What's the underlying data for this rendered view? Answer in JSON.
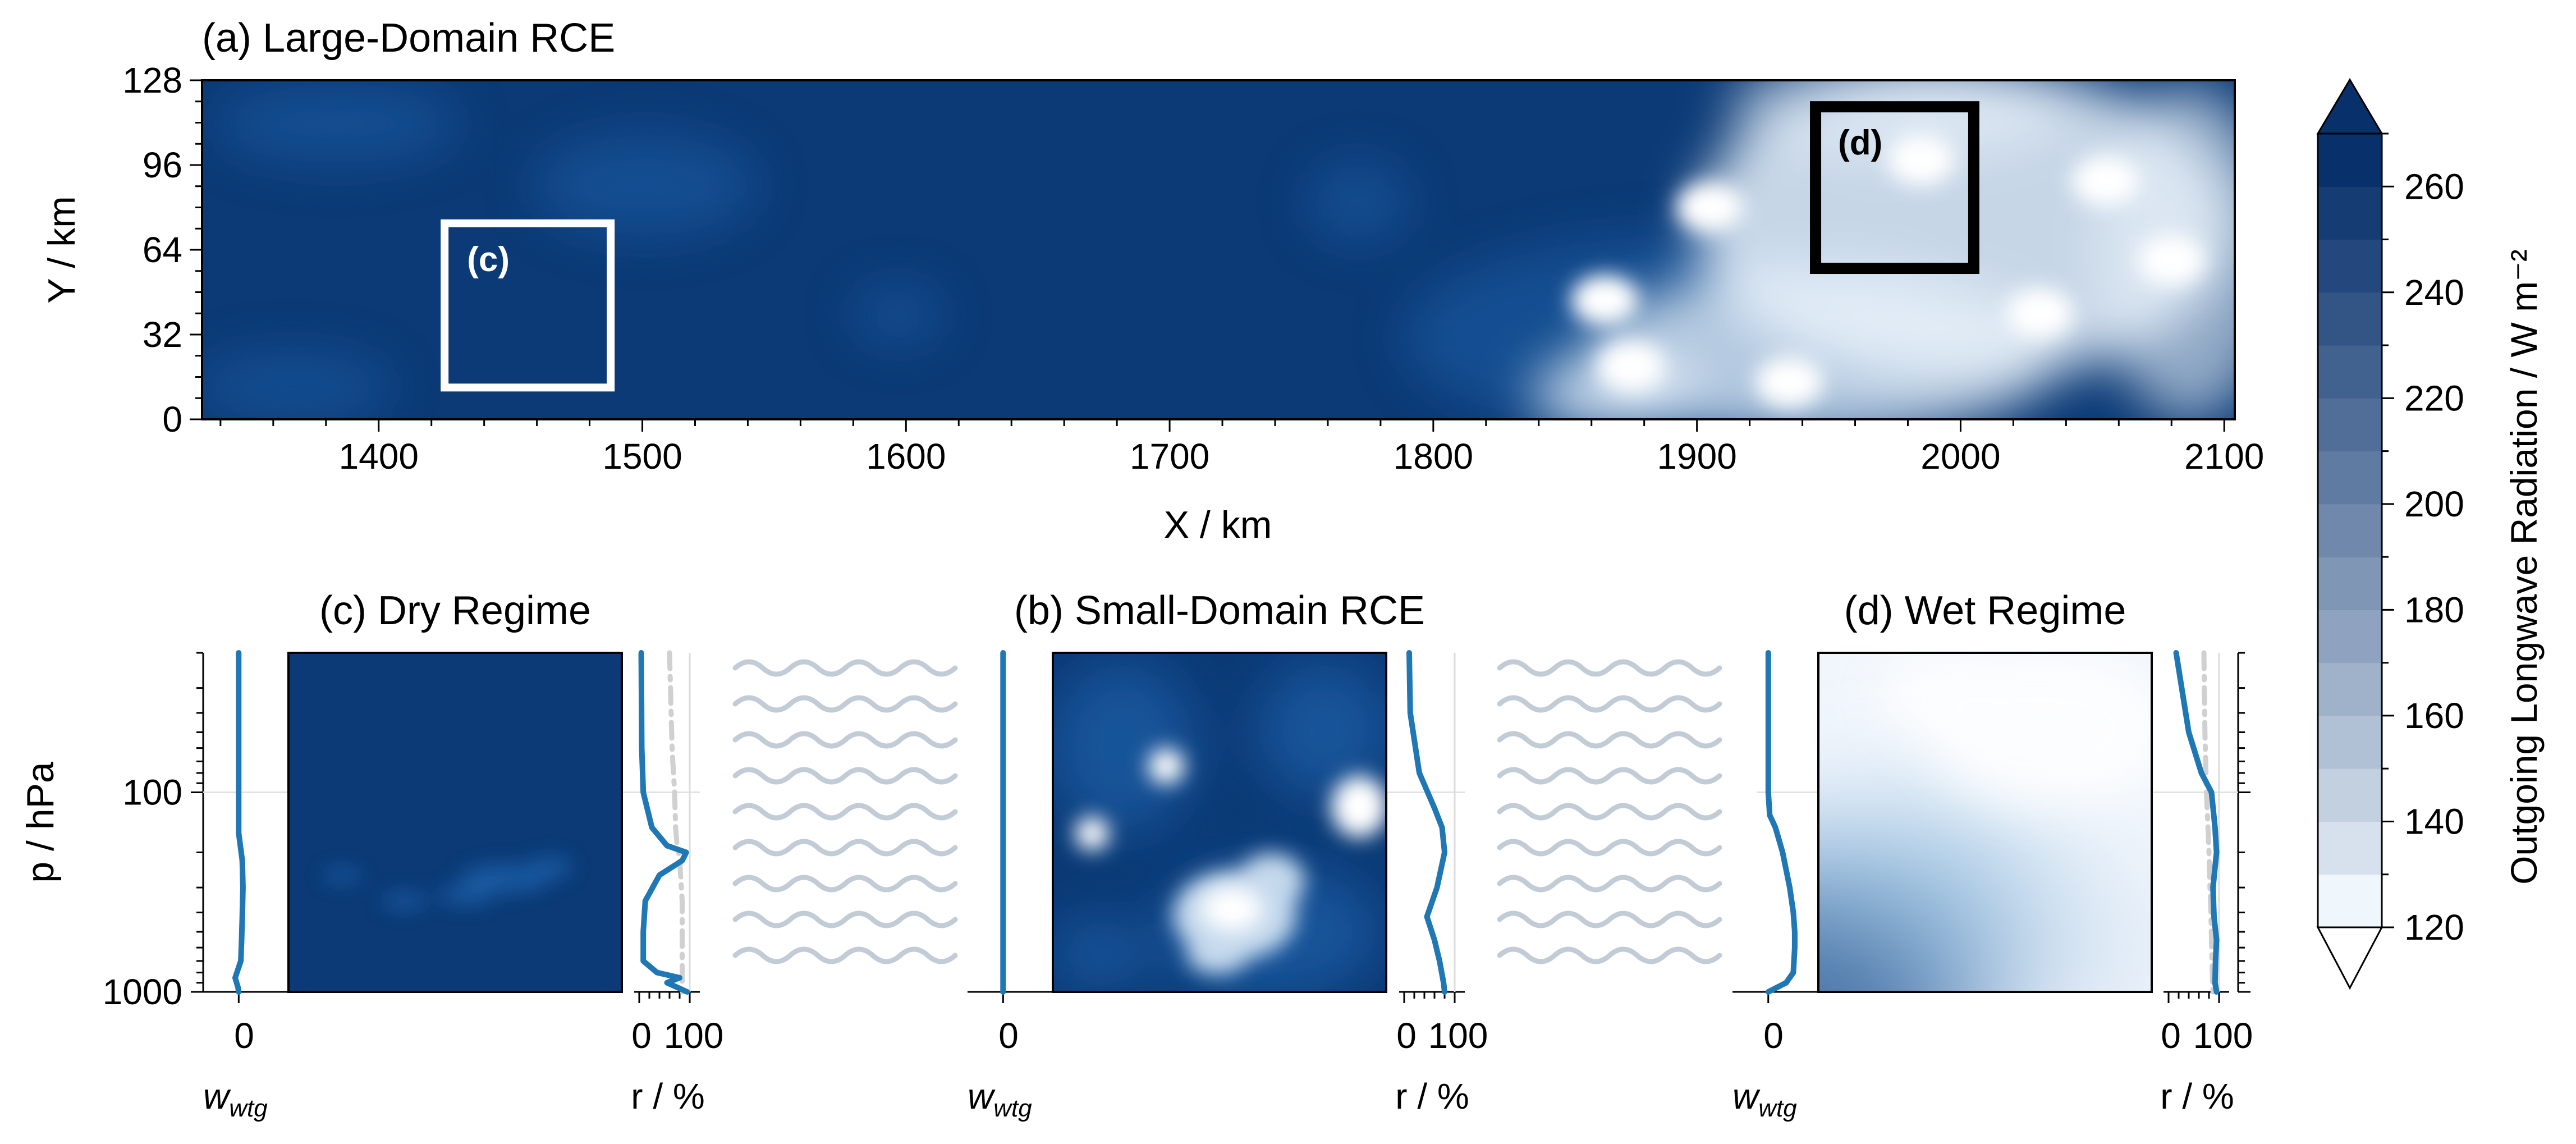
{
  "colors": {
    "field_dark": "#0b3a76",
    "field_mid": "#1c5ea8",
    "profile_line": "#1f77b4",
    "reference_dash": "#d0d0d0",
    "waves": "#c2ccd6",
    "box_dry": "#ffffff",
    "box_wet": "#000000"
  },
  "chart_data": [
    {
      "type": "heatmap",
      "panel": "a",
      "title": "(a) Large-Domain RCE",
      "xlabel": "X / km",
      "ylabel": "Y / km",
      "xlim": [
        1333,
        2104
      ],
      "ylim": [
        0,
        128
      ],
      "xticks": [
        1400,
        1500,
        1600,
        1700,
        1800,
        1900,
        2000,
        2100
      ],
      "yticks": [
        0,
        32,
        64,
        96,
        128
      ],
      "field": "Outgoing Longwave Radiation",
      "regions": [
        {
          "label": "(c)",
          "x": [
            1425,
            1488
          ],
          "y": [
            12,
            74
          ],
          "outline": "white"
        },
        {
          "label": "(d)",
          "x": [
            1945,
            2005
          ],
          "y": [
            57,
            118
          ],
          "outline": "black"
        }
      ],
      "bright_cloud_clusters_km": [
        {
          "x": 1905,
          "y": 80
        },
        {
          "x": 1865,
          "y": 45
        },
        {
          "x": 1875,
          "y": 20
        },
        {
          "x": 1935,
          "y": 14
        },
        {
          "x": 1985,
          "y": 98
        },
        {
          "x": 2055,
          "y": 90
        },
        {
          "x": 2030,
          "y": 40
        },
        {
          "x": 2080,
          "y": 60
        }
      ]
    },
    {
      "type": "line",
      "panel": "c",
      "title": "(c) Dry Regime",
      "ylabel": "p / hPa",
      "y_scale": "log",
      "ylim": [
        1000,
        20
      ],
      "yticks": [
        100,
        1000
      ],
      "w_wtg": {
        "xlabel": "w_wtg",
        "xticks": [
          0
        ],
        "xlim": [
          -0.5,
          0.7
        ],
        "p": [
          20,
          100,
          160,
          220,
          300,
          420,
          560,
          700,
          850,
          950,
          1000
        ],
        "values": [
          0.0,
          0.0,
          0.0,
          0.05,
          0.06,
          0.05,
          0.04,
          0.03,
          -0.05,
          -0.01,
          0.0
        ]
      },
      "r_percent": {
        "xlabel": "r / %",
        "xticks": [
          0,
          100
        ],
        "xlim": [
          -10,
          120
        ],
        "p": [
          20,
          60,
          100,
          150,
          185,
          200,
          220,
          260,
          350,
          500,
          700,
          800,
          850,
          900,
          1000
        ],
        "values": [
          4,
          5,
          8,
          25,
          55,
          93,
          85,
          40,
          12,
          8,
          8,
          35,
          80,
          55,
          95
        ],
        "reference_values": [
          60,
          65,
          70,
          72,
          75,
          78,
          80,
          82,
          85,
          85,
          85,
          85,
          85,
          85,
          85
        ]
      }
    },
    {
      "type": "line",
      "panel": "b",
      "title": "(b) Small-Domain RCE",
      "w_wtg": {
        "xlabel": "w_wtg",
        "xticks": [
          0
        ],
        "p": [
          20,
          1000
        ],
        "values": [
          0,
          0
        ]
      },
      "r_percent": {
        "xlabel": "r / %",
        "xticks": [
          0,
          100
        ],
        "p": [
          20,
          40,
          80,
          120,
          150,
          200,
          300,
          420,
          550,
          700,
          900,
          1000
        ],
        "values": [
          10,
          12,
          30,
          60,
          75,
          80,
          65,
          45,
          60,
          70,
          78,
          80
        ]
      }
    },
    {
      "type": "line",
      "panel": "d",
      "title": "(d) Wet Regime",
      "w_wtg": {
        "xlabel": "w_wtg",
        "xticks": [
          0
        ],
        "p": [
          20,
          100,
          130,
          150,
          200,
          300,
          400,
          500,
          600,
          800,
          900,
          1000
        ],
        "values": [
          0,
          0,
          0.02,
          0.1,
          0.2,
          0.3,
          0.35,
          0.37,
          0.37,
          0.35,
          0.25,
          0.0
        ]
      },
      "r_percent": {
        "xlabel": "r / %",
        "xticks": [
          0,
          100
        ],
        "p": [
          20,
          50,
          80,
          100,
          150,
          200,
          300,
          420,
          550,
          700,
          900,
          1000
        ],
        "values": [
          15,
          40,
          65,
          85,
          92,
          95,
          88,
          90,
          95,
          93,
          92,
          95
        ],
        "reference_values": [
          70,
          72,
          74,
          75,
          78,
          80,
          82,
          84,
          85,
          86,
          87,
          88
        ]
      }
    },
    {
      "type": "colorbar",
      "label": "Outgoing Longwave Radiation / W m⁻²",
      "range": [
        120,
        270
      ],
      "levels": [
        120,
        130,
        140,
        150,
        160,
        170,
        180,
        190,
        200,
        210,
        220,
        230,
        240,
        250,
        260,
        270
      ],
      "tick_labels": [
        120,
        140,
        160,
        180,
        200,
        220,
        240,
        260
      ],
      "extend": "both"
    }
  ]
}
